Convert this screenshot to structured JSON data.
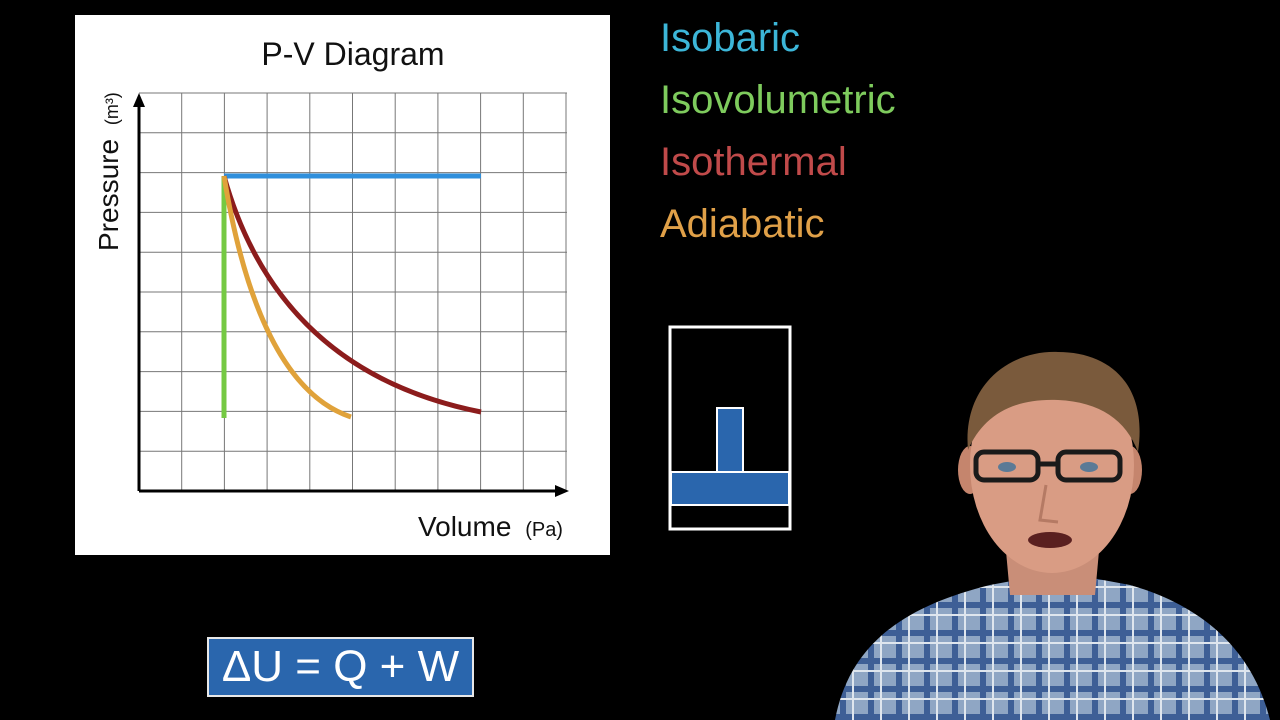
{
  "diagram": {
    "title": "P-V Diagram",
    "ylabel": "Pressure",
    "ylabel_unit": "(m³)",
    "xlabel": "Volume",
    "xlabel_unit": "(Pa)"
  },
  "legend": [
    {
      "label": "Isobaric",
      "color": "#3cb6d8"
    },
    {
      "label": "Isovolumetric",
      "color": "#7ecb5d"
    },
    {
      "label": "Isothermal",
      "color": "#c04a4a"
    },
    {
      "label": "Adiabatic",
      "color": "#e0a048"
    }
  ],
  "equation": "ΔU = Q + W",
  "colors": {
    "isobaric_line": "#2f8fdc",
    "isovolumetric_line": "#75c943",
    "isothermal_line": "#8c1c1c",
    "adiabatic_line": "#e0a23a",
    "piston_fill": "#2a66ad"
  }
}
